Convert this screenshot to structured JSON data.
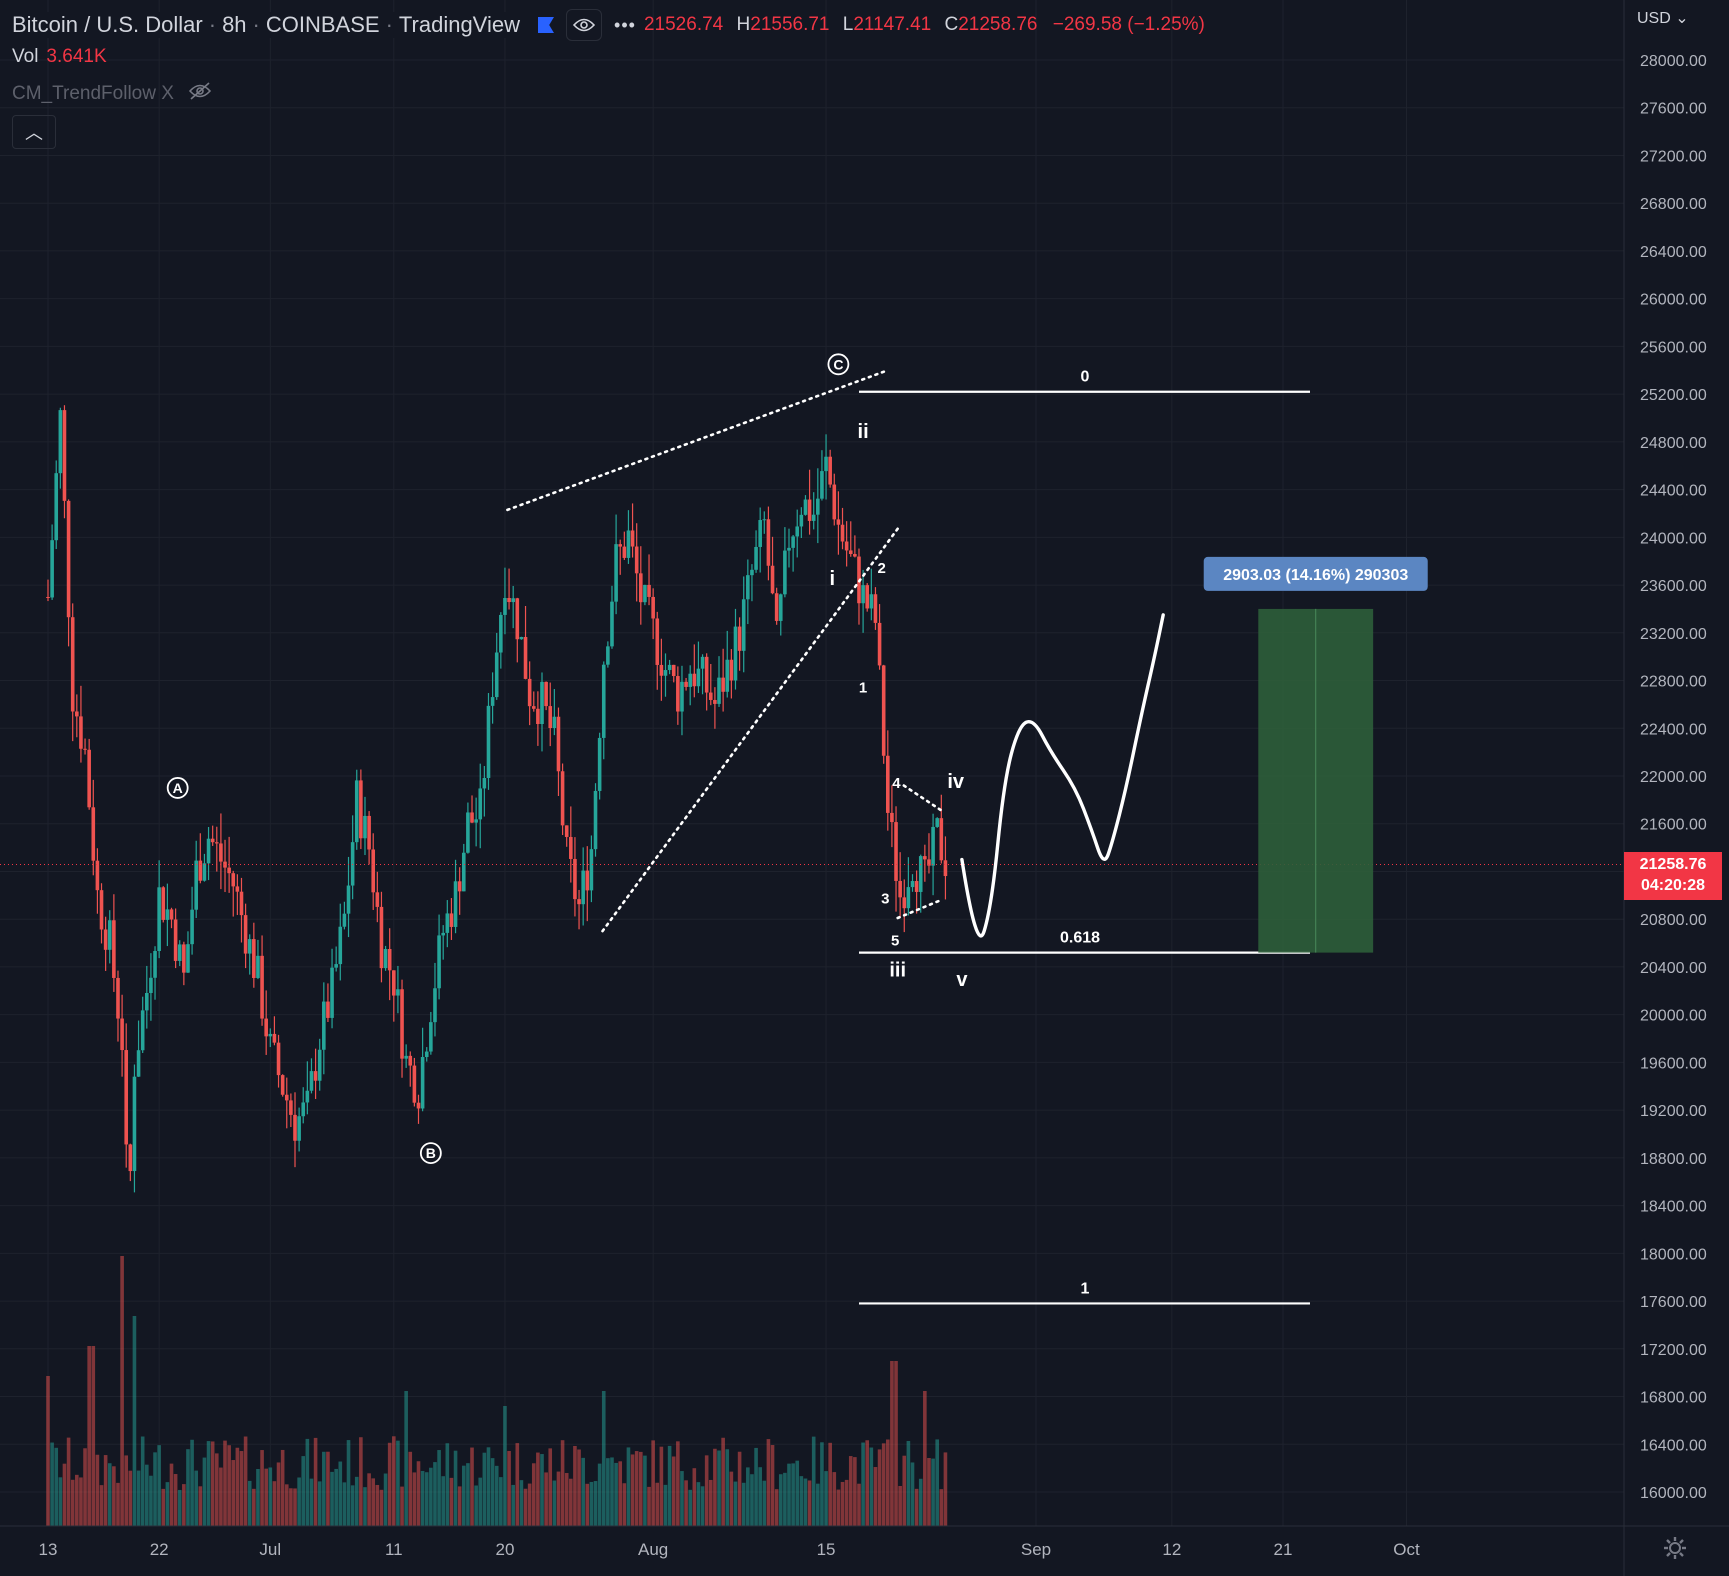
{
  "header": {
    "symbol": "Bitcoin / U.S. Dollar",
    "interval": "8h",
    "exchange": "COINBASE",
    "provider": "TradingView",
    "open": "21526.74",
    "high": "21556.71",
    "low": "21147.41",
    "close": "21258.76",
    "change": "−269.58 (−1.25%)",
    "o_label": "",
    "h_label": "H",
    "l_label": "L",
    "c_label": "C"
  },
  "volume": {
    "label": "Vol",
    "value": "3.641K"
  },
  "indicator": {
    "name": "CM_TrendFollow X"
  },
  "price_axis": {
    "currency": "USD"
  },
  "last_price": {
    "value": "21258.76",
    "countdown": "04:20:28"
  },
  "measure_label": "2903.03 (14.16%) 290303",
  "colors": {
    "up": "#26a69a",
    "down": "#ef5350",
    "background": "#131722",
    "measure_fill": "#2e5e3a",
    "measure_label_bg": "#5b86c2"
  },
  "chart_data": {
    "type": "candlestick",
    "y_ticks": [
      "28000.00",
      "27600.00",
      "27200.00",
      "26800.00",
      "26400.00",
      "26000.00",
      "25600.00",
      "25200.00",
      "24800.00",
      "24400.00",
      "24000.00",
      "23600.00",
      "23200.00",
      "22800.00",
      "22400.00",
      "22000.00",
      "21600.00",
      "21200.00",
      "20800.00",
      "20400.00",
      "20000.00",
      "19600.00",
      "19200.00",
      "18800.00",
      "18400.00",
      "18000.00",
      "17600.00",
      "17200.00",
      "16800.00",
      "16400.00",
      "16000.00"
    ],
    "x_ticks": [
      {
        "label": "13",
        "day": 0
      },
      {
        "label": "22",
        "day": 9
      },
      {
        "label": "Jul",
        "day": 18
      },
      {
        "label": "11",
        "day": 28
      },
      {
        "label": "20",
        "day": 37
      },
      {
        "label": "Aug",
        "day": 49
      },
      {
        "label": "15",
        "day": 63
      },
      {
        "label": "Sep",
        "day": 80
      },
      {
        "label": "12",
        "day": 91
      },
      {
        "label": "21",
        "day": 100
      },
      {
        "label": "Oct",
        "day": 110
      }
    ],
    "close_path": [
      [
        0,
        23500
      ],
      [
        1,
        25000
      ],
      [
        2,
        22700
      ],
      [
        3,
        22200
      ],
      [
        4,
        21000
      ],
      [
        5,
        20600
      ],
      [
        6,
        19800
      ],
      [
        6.5,
        18200
      ],
      [
        7,
        19600
      ],
      [
        8,
        20200
      ],
      [
        9,
        21000
      ],
      [
        10,
        20800
      ],
      [
        11,
        20300
      ],
      [
        12,
        21200
      ],
      [
        13,
        21500
      ],
      [
        14,
        21300
      ],
      [
        15,
        21100
      ],
      [
        16,
        20700
      ],
      [
        17,
        20300
      ],
      [
        18,
        19700
      ],
      [
        19,
        19400
      ],
      [
        20,
        19100
      ],
      [
        21,
        19200
      ],
      [
        22,
        19800
      ],
      [
        23,
        20200
      ],
      [
        24,
        20800
      ],
      [
        25,
        21800
      ],
      [
        26,
        21400
      ],
      [
        27,
        20600
      ],
      [
        28,
        20300
      ],
      [
        29,
        19600
      ],
      [
        30,
        19400
      ],
      [
        31,
        20100
      ],
      [
        32,
        20700
      ],
      [
        33,
        21000
      ],
      [
        34,
        21600
      ],
      [
        35,
        21700
      ],
      [
        36,
        22800
      ],
      [
        37,
        23700
      ],
      [
        38,
        23300
      ],
      [
        39,
        22700
      ],
      [
        40,
        22600
      ],
      [
        41,
        22300
      ],
      [
        42,
        21300
      ],
      [
        43,
        20900
      ],
      [
        44,
        21400
      ],
      [
        45,
        23000
      ],
      [
        46,
        23800
      ],
      [
        47,
        24000
      ],
      [
        48,
        23500
      ],
      [
        49,
        23200
      ],
      [
        50,
        22900
      ],
      [
        51,
        22700
      ],
      [
        52,
        22900
      ],
      [
        53,
        22800
      ],
      [
        54,
        22600
      ],
      [
        55,
        22900
      ],
      [
        56,
        23200
      ],
      [
        57,
        23700
      ],
      [
        58,
        24100
      ],
      [
        59,
        23100
      ],
      [
        60,
        24000
      ],
      [
        61,
        24300
      ],
      [
        62,
        24200
      ],
      [
        63,
        24600
      ],
      [
        64,
        24100
      ],
      [
        65,
        23800
      ],
      [
        66,
        23500
      ],
      [
        67,
        23300
      ],
      [
        68,
        21700
      ],
      [
        69,
        21000
      ],
      [
        70,
        21300
      ],
      [
        71,
        21100
      ],
      [
        72,
        21500
      ],
      [
        73,
        21200
      ]
    ],
    "volume_peaks": [
      {
        "day": 0,
        "value": 0.5
      },
      {
        "day": 3.5,
        "value": 0.6
      },
      {
        "day": 6,
        "value": 0.9
      },
      {
        "day": 7,
        "value": 0.7
      },
      {
        "day": 29,
        "value": 0.45
      },
      {
        "day": 37,
        "value": 0.4
      },
      {
        "day": 45,
        "value": 0.45
      },
      {
        "day": 68.5,
        "value": 0.55
      },
      {
        "day": 71,
        "value": 0.45
      }
    ],
    "fib_levels": [
      {
        "label": "0",
        "price": 25220
      },
      {
        "label": "0.618",
        "price": 20520
      },
      {
        "label": "1",
        "price": 17580
      }
    ],
    "wave_labels": [
      {
        "text": "A",
        "day": 10.5,
        "price": 21900,
        "circled": true
      },
      {
        "text": "B",
        "day": 31,
        "price": 18840,
        "circled": true
      },
      {
        "text": "C",
        "day": 64,
        "price": 25450,
        "circled": true
      },
      {
        "text": "ii",
        "day": 66,
        "price": 24890,
        "circled": false
      },
      {
        "text": "i",
        "day": 63.5,
        "price": 23660,
        "circled": false
      },
      {
        "text": "2",
        "day": 67.5,
        "price": 23760,
        "circled": false
      },
      {
        "text": "1",
        "day": 66,
        "price": 22760,
        "circled": false
      },
      {
        "text": "4",
        "day": 68.7,
        "price": 21960,
        "circled": false
      },
      {
        "text": "iv",
        "day": 73.5,
        "price": 21960,
        "circled": false
      },
      {
        "text": "3",
        "day": 67.8,
        "price": 20990,
        "circled": false
      },
      {
        "text": "5",
        "day": 68.6,
        "price": 20640,
        "circled": false
      },
      {
        "text": "iii",
        "day": 68.8,
        "price": 20380,
        "circled": false
      },
      {
        "text": "v",
        "day": 74,
        "price": 20300,
        "circled": false
      }
    ],
    "trendlines": [
      {
        "from": [
          37.2,
          24230
        ],
        "to": [
          68,
          25400
        ]
      },
      {
        "from": [
          44.9,
          20700
        ],
        "to": [
          69,
          24100
        ]
      },
      {
        "from": [
          69.3,
          21920
        ],
        "to": [
          72.5,
          21700
        ]
      },
      {
        "from": [
          68.8,
          20810
        ],
        "to": [
          72.3,
          20960
        ]
      }
    ],
    "projection_path": [
      [
        74,
        21300
      ],
      [
        75.2,
        20500
      ],
      [
        76.4,
        20900
      ],
      [
        77.4,
        21950
      ],
      [
        78.6,
        22420
      ],
      [
        79.8,
        22480
      ],
      [
        81.2,
        22200
      ],
      [
        83.2,
        21900
      ],
      [
        84.5,
        21550
      ],
      [
        85.5,
        21240
      ],
      [
        86.2,
        21450
      ],
      [
        87.3,
        21900
      ],
      [
        88.5,
        22500
      ],
      [
        89.6,
        23000
      ],
      [
        90.3,
        23350
      ]
    ],
    "measure_box": {
      "from_day": 98,
      "to_day": 107.3,
      "top": 23400,
      "bottom": 20520
    },
    "last_price_level": 21258.76
  }
}
